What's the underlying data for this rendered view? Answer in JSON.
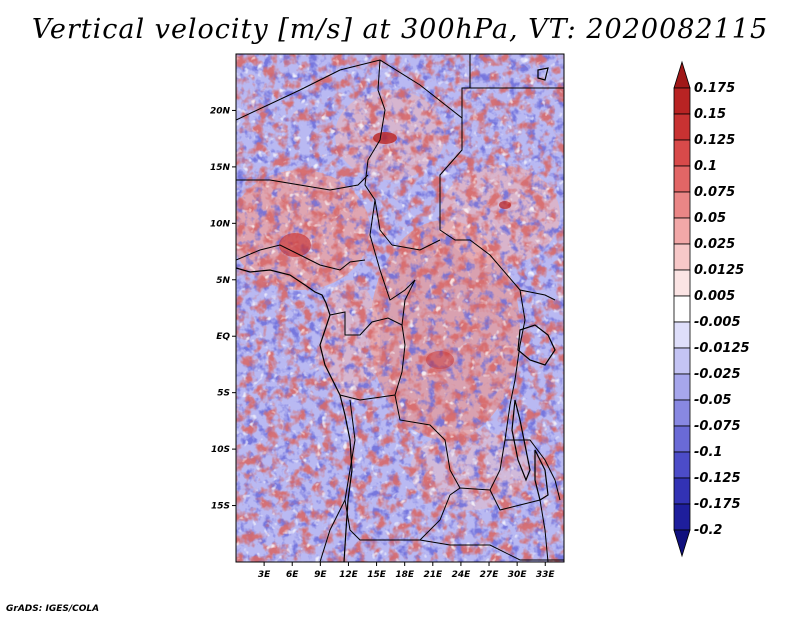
{
  "title": "Vertical velocity [m/s] at 300hPa, VT: 2020082115",
  "footer": "GrADS: IGES/COLA",
  "map": {
    "lat_labels": [
      "20N",
      "15N",
      "10N",
      "5N",
      "EQ",
      "5S",
      "10S",
      "15S"
    ],
    "lat_values": [
      20,
      15,
      10,
      5,
      0,
      -5,
      -10,
      -15
    ],
    "lon_labels": [
      "3E",
      "6E",
      "9E",
      "12E",
      "15E",
      "18E",
      "21E",
      "24E",
      "27E",
      "30E",
      "33E"
    ],
    "lon_values": [
      3,
      6,
      9,
      12,
      15,
      18,
      21,
      24,
      27,
      30,
      33
    ],
    "lon_range": [
      0,
      35
    ],
    "lat_range": [
      -20,
      25
    ]
  },
  "colorbar": {
    "labels": [
      "0.175",
      "0.15",
      "0.125",
      "0.1",
      "0.075",
      "0.05",
      "0.025",
      "0.0125",
      "0.005",
      "-0.005",
      "-0.0125",
      "-0.025",
      "-0.05",
      "-0.075",
      "-0.1",
      "-0.125",
      "-0.175",
      "-0.2"
    ],
    "colors": [
      "#a01818",
      "#b82323",
      "#c83232",
      "#d84a4a",
      "#e26666",
      "#ea8686",
      "#f2a8a8",
      "#f7c8c8",
      "#fbe4e4",
      "#ffffff",
      "#dedefa",
      "#c4c4f4",
      "#a6a6ec",
      "#8888e2",
      "#6a6ad6",
      "#4c4cc8",
      "#3232b4",
      "#1e1e9c",
      "#10107e"
    ]
  }
}
